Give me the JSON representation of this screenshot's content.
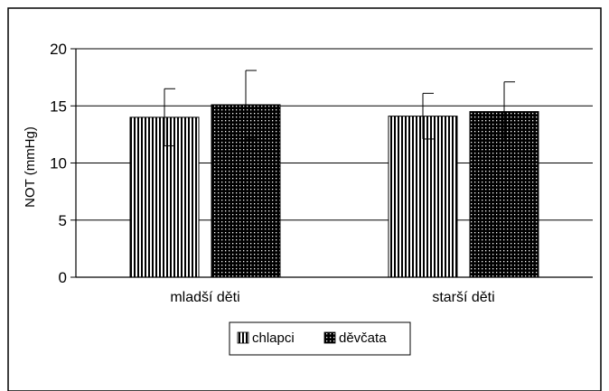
{
  "chart_data": {
    "type": "bar",
    "categories": [
      "mladší děti",
      "starší děti"
    ],
    "series": [
      {
        "name": "chlapci",
        "pattern": "vertical-stripes",
        "values": [
          14.0,
          14.1
        ],
        "error_plus": [
          2.5,
          2.0
        ],
        "error_minus": [
          2.5,
          2.0
        ]
      },
      {
        "name": "děvčata",
        "pattern": "dots",
        "values": [
          15.1,
          14.5
        ],
        "error_plus": [
          3.0,
          2.6
        ],
        "error_minus": [
          3.0,
          2.6
        ]
      }
    ],
    "ylabel": "NOT (mmHg)",
    "ylim": [
      0,
      20
    ],
    "yticks": [
      0,
      5,
      10,
      15,
      20
    ],
    "grid": true,
    "legend_position": "bottom",
    "colors": {
      "bar_fill": "#000000",
      "bar_pattern": "#ffffff",
      "axis": "#000000",
      "frame": "#000000"
    }
  }
}
